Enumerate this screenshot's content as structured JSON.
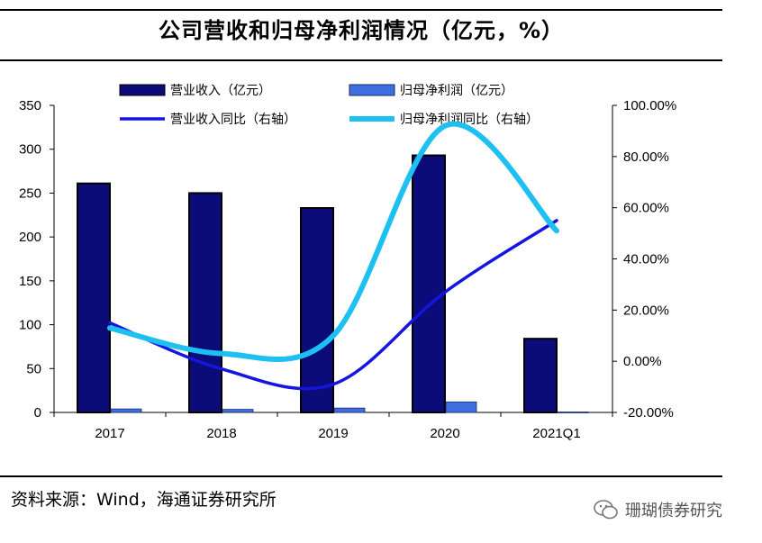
{
  "title": "公司营收和归母净利润情况（亿元，%）",
  "source": "资料来源：Wind，海通证券研究所",
  "watermark": {
    "text": "珊瑚债券研究",
    "icon": "wechat-icon"
  },
  "colors": {
    "revenue_bar": "#0b0b7a",
    "profit_bar": "#3d6fe0",
    "revenue_yoy": "#1515e0",
    "profit_yoy": "#1ec0f2"
  },
  "chart_data": {
    "type": "bar",
    "categories": [
      "2017",
      "2018",
      "2019",
      "2020",
      "2021Q1"
    ],
    "series": [
      {
        "name": "营业收入（亿元）",
        "kind": "bar",
        "axis": "left",
        "values": [
          261,
          250,
          233,
          293,
          84
        ]
      },
      {
        "name": "归母净利润（亿元）",
        "kind": "bar",
        "axis": "left",
        "values": [
          4,
          3.5,
          5,
          12,
          0.5
        ]
      },
      {
        "name": "营业收入同比（右轴）",
        "kind": "line",
        "axis": "right",
        "values": [
          15,
          -3,
          -9,
          27,
          55
        ]
      },
      {
        "name": "归母净利润同比（右轴）",
        "kind": "line",
        "axis": "right",
        "values": [
          13,
          3,
          10,
          92,
          51
        ]
      }
    ],
    "y_left": {
      "min": 0,
      "max": 350,
      "ticks": [
        "0",
        "50",
        "100",
        "150",
        "200",
        "250",
        "300",
        "350"
      ]
    },
    "y_right": {
      "min": -20,
      "max": 100,
      "ticks": [
        "-20.00%",
        "0.00%",
        "20.00%",
        "40.00%",
        "60.00%",
        "80.00%",
        "100.00%"
      ]
    },
    "legend_position": "top"
  }
}
